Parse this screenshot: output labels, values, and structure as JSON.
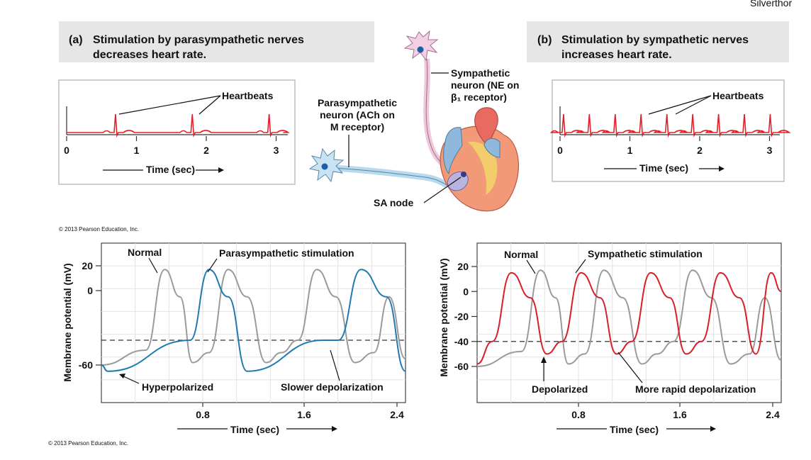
{
  "corner_text": "Silverthor",
  "panel_a": {
    "title_line1": "Stimulation by parasympathetic nerves",
    "title_line2": "decreases heart rate.",
    "letter": "(a)",
    "heartbeats_label": "Heartbeats",
    "x_ticks": [
      "0",
      "1",
      "2",
      "3"
    ],
    "x_label": "Time (sec)",
    "beat_times": [
      0.7,
      1.8,
      2.9
    ]
  },
  "panel_b": {
    "title_line1": "Stimulation by sympathetic nerves",
    "title_line2": "increases heart rate.",
    "letter": "(b)",
    "heartbeats_label": "Heartbeats",
    "x_ticks": [
      "0",
      "1",
      "2",
      "3"
    ],
    "x_label": "Time (sec)",
    "beat_times": [
      0.05,
      0.42,
      0.79,
      1.16,
      1.53,
      1.9,
      2.27,
      2.64,
      3.01
    ]
  },
  "center": {
    "parasympathetic_line1": "Parasympathetic",
    "parasympathetic_line2": "neuron (ACh on",
    "parasympathetic_line3": "M receptor)",
    "sympathetic_line1": "Sympathetic",
    "sympathetic_line2": "neuron (NE on",
    "sympathetic_line3": "β₁ receptor)",
    "sa_node": "SA node"
  },
  "copyright_top": "© 2013 Pearson Education, Inc.",
  "copyright_bottom": "© 2013 Pearson Education, Inc.",
  "colors": {
    "ecg_red": "#e0202a",
    "parasym_blue": "#1f7ab3",
    "sym_red": "#d81e2a",
    "normal_gray": "#9a9a9a",
    "title_band": "#e6e6e6"
  },
  "chart_data": [
    {
      "type": "line",
      "y_label": "Membrane potential (mV)",
      "y_ticks": [
        "20",
        "0",
        "-60"
      ],
      "x_ticks": [
        "0.8",
        "1.6",
        "2.4"
      ],
      "x_label": "Time (sec)",
      "xlim": [
        0,
        2.4
      ],
      "threshold_mv": -40,
      "annotations": [
        "Normal",
        "Parasympathetic stimulation",
        "Hyperpolarized",
        "Slower depolarization"
      ],
      "series": [
        {
          "name": "Normal",
          "color": "#9a9a9a",
          "x": [
            0.0,
            0.35,
            0.5,
            0.62,
            0.72,
            0.85,
            1.0,
            1.15,
            1.3,
            1.42,
            1.55,
            1.7,
            1.85,
            2.0,
            2.15,
            2.27,
            2.4
          ],
          "y": [
            -60,
            -48,
            17,
            -5,
            -58,
            -50,
            17,
            -5,
            -58,
            -50,
            -40,
            17,
            -5,
            -58,
            -50,
            -5,
            -55
          ]
        },
        {
          "name": "Parasympathetic stimulation",
          "color": "#1f7ab3",
          "x": [
            0.0,
            0.05,
            0.7,
            0.85,
            1.0,
            1.15,
            1.75,
            1.87,
            2.05,
            2.25,
            2.4
          ],
          "y": [
            -60,
            -65,
            -40,
            17,
            -5,
            -65,
            -40,
            -40,
            17,
            -5,
            -65
          ]
        }
      ]
    },
    {
      "type": "line",
      "y_label": "Membrane potential (mV)",
      "y_ticks": [
        "20",
        "0",
        "-20",
        "-40",
        "-60"
      ],
      "x_ticks": [
        "0.8",
        "1.6",
        "2.4"
      ],
      "x_label": "Time (sec)",
      "xlim": [
        0,
        2.4
      ],
      "threshold_mv": -40,
      "annotations": [
        "Normal",
        "Sympathetic stimulation",
        "Depolarized",
        "More rapid depolarization"
      ],
      "series": [
        {
          "name": "Normal",
          "color": "#9a9a9a",
          "x": [
            0.0,
            0.35,
            0.5,
            0.62,
            0.72,
            0.85,
            1.0,
            1.15,
            1.3,
            1.42,
            1.55,
            1.7,
            1.85,
            2.0,
            2.15,
            2.27,
            2.4
          ],
          "y": [
            -60,
            -48,
            17,
            -5,
            -58,
            -50,
            17,
            -5,
            -58,
            -50,
            -40,
            17,
            -5,
            -58,
            -50,
            -5,
            -55
          ]
        },
        {
          "name": "Sympathetic stimulation",
          "color": "#d81e2a",
          "x": [
            0.0,
            0.12,
            0.27,
            0.42,
            0.55,
            0.67,
            0.82,
            0.97,
            1.1,
            1.22,
            1.37,
            1.52,
            1.65,
            1.77,
            1.92,
            2.07,
            2.2,
            2.32,
            2.4
          ],
          "y": [
            -58,
            -40,
            15,
            -5,
            -50,
            -40,
            15,
            -5,
            -50,
            -40,
            15,
            -5,
            -50,
            -40,
            15,
            -5,
            -50,
            15,
            0
          ]
        }
      ]
    }
  ]
}
